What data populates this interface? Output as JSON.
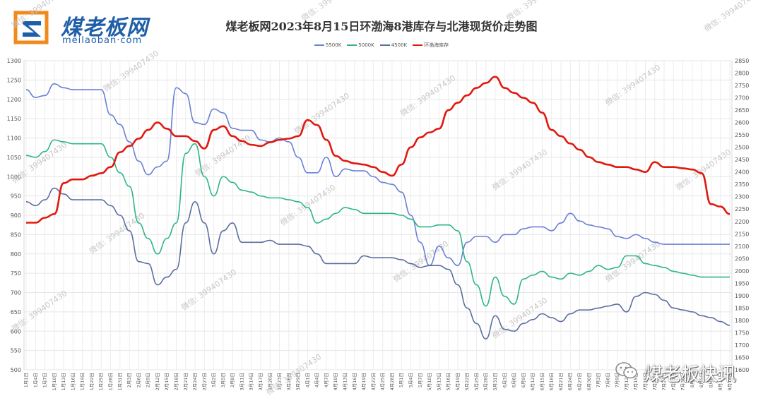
{
  "brand": {
    "name_cn": "煤老板网",
    "domain": "meilaoban·com",
    "footer_text": "煤老板快讯",
    "watermark_text": "微信: 399407430"
  },
  "chart_data": {
    "type": "line",
    "title": "煤老板网2023年8月15日环渤海8港库存与北港现货价走势图",
    "x": [
      "1月1日",
      "1月4日",
      "1月7日",
      "1月10日",
      "1月13日",
      "1月16日",
      "1月19日",
      "1月22日",
      "1月25日",
      "1月28日",
      "1月31日",
      "2月3日",
      "2月6日",
      "2月9日",
      "2月12日",
      "2月15日",
      "2月18日",
      "2月21日",
      "2月24日",
      "2月27日",
      "3月2日",
      "3月5日",
      "3月8日",
      "3月11日",
      "3月14日",
      "3月17日",
      "3月20日",
      "3月23日",
      "3月26日",
      "3月29日",
      "4月1日",
      "4月4日",
      "4月7日",
      "4月10日",
      "4月13日",
      "4月16日",
      "4月19日",
      "4月22日",
      "4月25日",
      "4月28日",
      "5月1日",
      "5月4日",
      "5月7日",
      "5月10日",
      "5月13日",
      "5月16日",
      "5月19日",
      "5月22日",
      "5月25日",
      "5月28日",
      "5月31日",
      "6月3日",
      "6月6日",
      "6月9日",
      "6月12日",
      "6月15日",
      "6月18日",
      "6月21日",
      "6月24日",
      "6月27日",
      "6月30日",
      "7月3日",
      "7月6日",
      "7月9日",
      "7月12日",
      "7月15日",
      "7月18日",
      "7月21日",
      "7月24日",
      "7月27日",
      "7月30日",
      "8月2日",
      "8月5日",
      "8月8日",
      "8月11日",
      "8月14日"
    ],
    "y_left": {
      "min": 500,
      "max": 1300,
      "step": 50,
      "ticks": [
        "500",
        "550",
        "600",
        "650",
        "700",
        "750",
        "800",
        "850",
        "900",
        "950",
        "1000",
        "1050",
        "1100",
        "1150",
        "1200",
        "1250",
        "1300"
      ]
    },
    "y_right": {
      "min": 1600,
      "max": 2850,
      "step": 50,
      "ticks": [
        "1600",
        "1650",
        "1700",
        "1750",
        "1800",
        "1850",
        "1900",
        "1950",
        "2000",
        "2050",
        "2100",
        "2150",
        "2200",
        "2250",
        "2300",
        "2350",
        "2400",
        "2450",
        "2500",
        "2550",
        "2600",
        "2650",
        "2700",
        "2750",
        "2800",
        "2850"
      ]
    },
    "grid": true,
    "legend_position": "top",
    "series": [
      {
        "name": "5500K",
        "color": "#6b7fd7",
        "axis": "left",
        "width": 1.6,
        "values": [
          1225,
          1205,
          1210,
          1240,
          1230,
          1225,
          1225,
          1225,
          1225,
          1160,
          1135,
          1090,
          1040,
          1005,
          1025,
          1040,
          1230,
          1215,
          1140,
          1135,
          1175,
          1165,
          1125,
          1120,
          1120,
          1095,
          1090,
          1100,
          1090,
          1050,
          1010,
          1010,
          1050,
          1000,
          1020,
          1015,
          1015,
          1000,
          985,
          980,
          960,
          900,
          830,
          770,
          820,
          790,
          770,
          830,
          845,
          845,
          830,
          850,
          850,
          865,
          870,
          870,
          860,
          880,
          905,
          885,
          875,
          870,
          865,
          845,
          840,
          850,
          840,
          830,
          825,
          825,
          825,
          825,
          825,
          825,
          825,
          825
        ]
      },
      {
        "name": "5000K",
        "color": "#2db58a",
        "axis": "left",
        "width": 1.6,
        "values": [
          1055,
          1050,
          1065,
          1095,
          1090,
          1085,
          1085,
          1085,
          1085,
          1050,
          1010,
          975,
          880,
          840,
          800,
          840,
          880,
          1060,
          1085,
          1000,
          950,
          1000,
          985,
          965,
          960,
          950,
          945,
          945,
          940,
          935,
          920,
          880,
          890,
          905,
          920,
          915,
          905,
          905,
          905,
          905,
          900,
          890,
          870,
          870,
          875,
          875,
          860,
          780,
          720,
          665,
          740,
          690,
          670,
          735,
          745,
          755,
          740,
          735,
          750,
          745,
          755,
          770,
          760,
          765,
          795,
          795,
          775,
          770,
          765,
          755,
          750,
          745,
          740,
          740,
          740,
          740
        ]
      },
      {
        "name": "4500K",
        "color": "#5a6ea0",
        "axis": "left",
        "width": 1.6,
        "values": [
          935,
          925,
          940,
          970,
          955,
          940,
          940,
          940,
          940,
          925,
          900,
          860,
          780,
          775,
          720,
          740,
          760,
          880,
          935,
          880,
          800,
          860,
          880,
          830,
          830,
          830,
          835,
          825,
          825,
          825,
          820,
          800,
          775,
          775,
          775,
          775,
          795,
          790,
          790,
          790,
          785,
          775,
          765,
          770,
          770,
          760,
          720,
          660,
          620,
          580,
          640,
          605,
          600,
          620,
          630,
          645,
          635,
          625,
          645,
          655,
          655,
          660,
          665,
          670,
          650,
          690,
          700,
          695,
          680,
          660,
          655,
          650,
          640,
          635,
          625,
          615
        ]
      },
      {
        "name": "环渤海库存",
        "color": "#e0190f",
        "axis": "right",
        "width": 2.6,
        "values": [
          2195,
          2195,
          2215,
          2230,
          2355,
          2370,
          2370,
          2385,
          2395,
          2420,
          2480,
          2505,
          2535,
          2570,
          2600,
          2575,
          2545,
          2545,
          2525,
          2495,
          2570,
          2585,
          2545,
          2525,
          2510,
          2505,
          2520,
          2530,
          2535,
          2545,
          2610,
          2590,
          2530,
          2465,
          2445,
          2435,
          2430,
          2420,
          2400,
          2385,
          2430,
          2500,
          2540,
          2560,
          2575,
          2650,
          2680,
          2710,
          2740,
          2760,
          2785,
          2740,
          2720,
          2700,
          2680,
          2640,
          2570,
          2545,
          2515,
          2490,
          2460,
          2440,
          2430,
          2420,
          2420,
          2410,
          2400,
          2440,
          2420,
          2420,
          2415,
          2410,
          2395,
          2270,
          2260,
          2230
        ]
      }
    ]
  }
}
